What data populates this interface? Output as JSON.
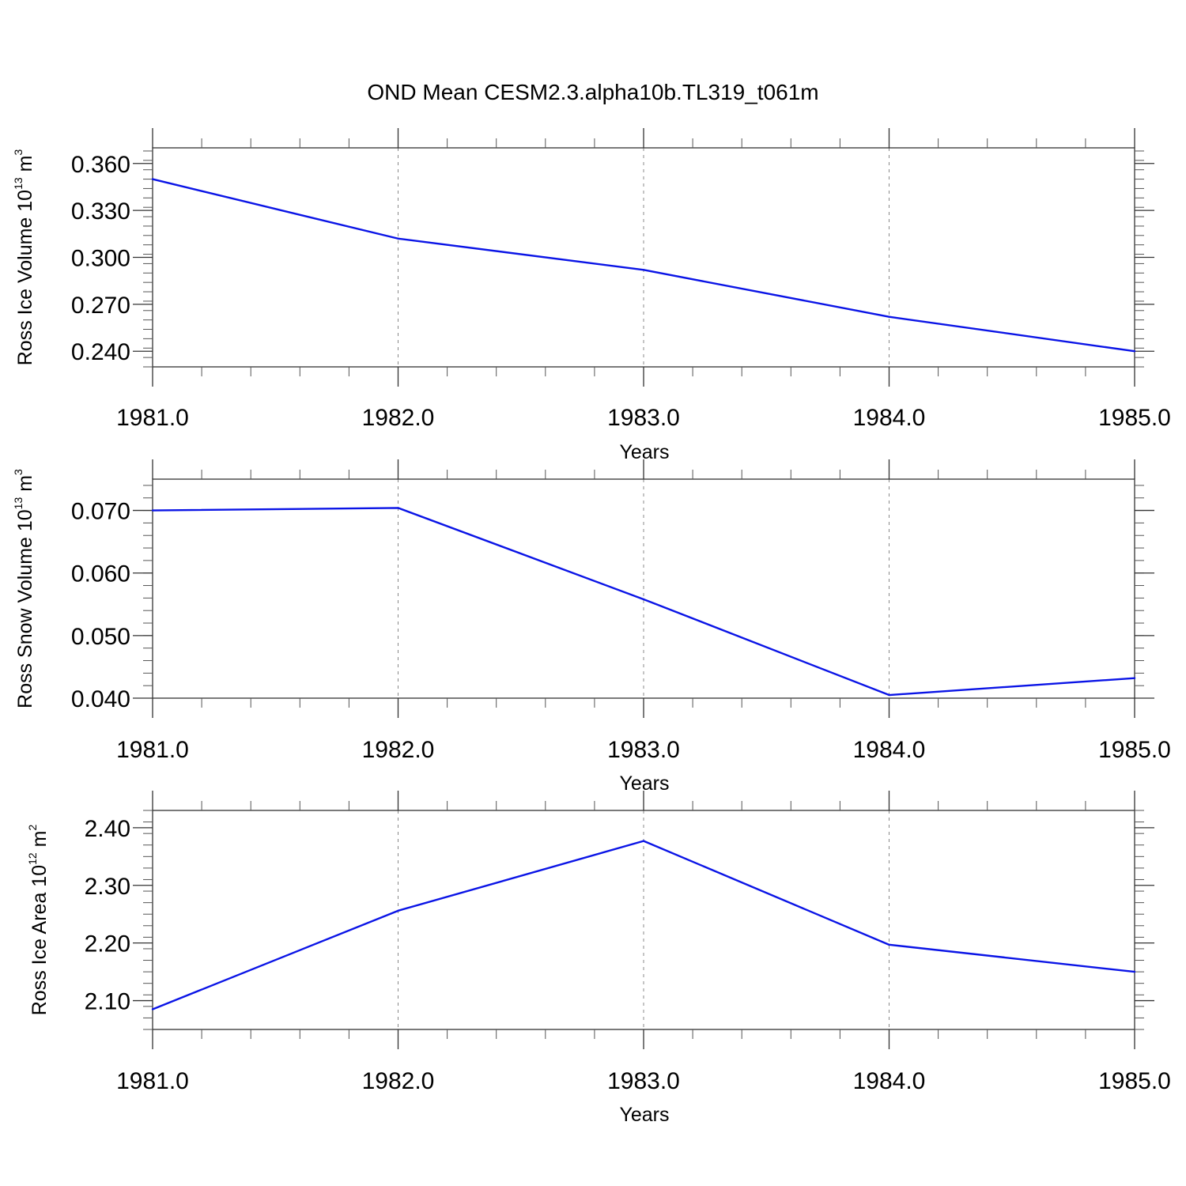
{
  "figure": {
    "title": "OND Mean CESM2.3.alpha10b.TL319_t061m",
    "line_color": "#0a14e6"
  },
  "chart_data": [
    {
      "type": "line",
      "title": "",
      "xlabel": "Years",
      "ylabel": {
        "main": "Ross Ice Volume 10",
        "sup": "13",
        "unit": " m",
        "unit_sup": "3"
      },
      "x": [
        1981,
        1982,
        1983,
        1984,
        1985
      ],
      "series": [
        {
          "values": [
            0.35,
            0.312,
            0.292,
            0.262,
            0.24
          ]
        }
      ],
      "xlim": [
        1981,
        1985
      ],
      "ylim": [
        0.23,
        0.37
      ],
      "xticks": [
        "1981.0",
        "1982.0",
        "1983.0",
        "1984.0",
        "1985.0"
      ],
      "xtick_values": [
        1981,
        1982,
        1983,
        1984,
        1985
      ],
      "yticks": [
        "0.240",
        "0.270",
        "0.300",
        "0.330",
        "0.360"
      ],
      "ytick_values": [
        0.24,
        0.27,
        0.3,
        0.33,
        0.36
      ],
      "yminor_step": 0.006,
      "xminor_step": 0.2,
      "grid": "x-dashed"
    },
    {
      "type": "line",
      "title": "",
      "xlabel": "Years",
      "ylabel": {
        "main": "Ross Snow Volume 10",
        "sup": "13",
        "unit": " m",
        "unit_sup": "3"
      },
      "x": [
        1981,
        1982,
        1983,
        1984,
        1985
      ],
      "series": [
        {
          "values": [
            0.07,
            0.0704,
            0.0558,
            0.0405,
            0.0432
          ]
        }
      ],
      "xlim": [
        1981,
        1985
      ],
      "ylim": [
        0.04,
        0.075
      ],
      "xticks": [
        "1981.0",
        "1982.0",
        "1983.0",
        "1984.0",
        "1985.0"
      ],
      "xtick_values": [
        1981,
        1982,
        1983,
        1984,
        1985
      ],
      "yticks": [
        "0.040",
        "0.050",
        "0.060",
        "0.070"
      ],
      "ytick_values": [
        0.04,
        0.05,
        0.06,
        0.07
      ],
      "yminor_step": 0.002,
      "xminor_step": 0.2,
      "grid": "x-dashed"
    },
    {
      "type": "line",
      "title": "",
      "xlabel": "Years",
      "ylabel": {
        "main": "Ross Ice Area 10",
        "sup": "12",
        "unit": " m",
        "unit_sup": "2"
      },
      "x": [
        1981,
        1982,
        1983,
        1984,
        1985
      ],
      "series": [
        {
          "values": [
            2.085,
            2.256,
            2.377,
            2.197,
            2.15
          ]
        }
      ],
      "xlim": [
        1981,
        1985
      ],
      "ylim": [
        2.05,
        2.43
      ],
      "xticks": [
        "1981.0",
        "1982.0",
        "1983.0",
        "1984.0",
        "1985.0"
      ],
      "xtick_values": [
        1981,
        1982,
        1983,
        1984,
        1985
      ],
      "yticks": [
        "2.10",
        "2.20",
        "2.30",
        "2.40"
      ],
      "ytick_values": [
        2.1,
        2.2,
        2.3,
        2.4
      ],
      "yminor_step": 0.02,
      "xminor_step": 0.2,
      "grid": "x-dashed"
    }
  ]
}
